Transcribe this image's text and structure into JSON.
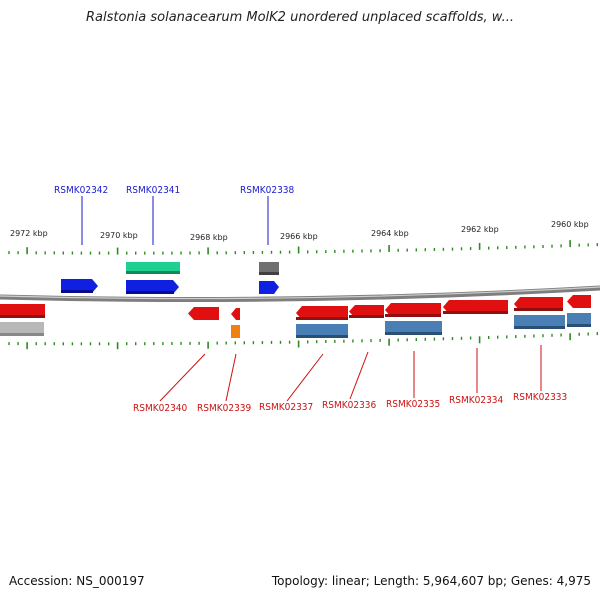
{
  "title": "Ralstonia solanacearum MolK2 unordered unplaced scaffolds, w...",
  "footer": {
    "accession": "Accession: NS_000197",
    "summary": "Topology: linear; Length: 5,964,607 bp; Genes: 4,975"
  },
  "colors": {
    "forward_label": "#1a1acc",
    "reverse_label": "#cc1111",
    "backbone": "#8a8a8a",
    "tick": "#2e8b22",
    "gene_red": "#e01010",
    "gene_blue": "#1020e0",
    "gene_teal": "#20d090",
    "gene_steel": "#4a7fb5",
    "gene_gray": "#707070",
    "gene_orange": "#f08010",
    "gene_lightgray": "#b8b8b8"
  },
  "kbp_labels": [
    "2972 kbp",
    "2970 kbp",
    "2968 kbp",
    "2966 kbp",
    "2964 kbp",
    "2962 kbp",
    "2960 kbp"
  ],
  "forward_gene_labels": [
    "RSMK02342",
    "RSMK02341",
    "RSMK02338"
  ],
  "reverse_gene_labels": [
    "RSMK02340",
    "RSMK02339",
    "RSMK02337",
    "RSMK02336",
    "RSMK02335",
    "RSMK02334",
    "RSMK02333"
  ]
}
